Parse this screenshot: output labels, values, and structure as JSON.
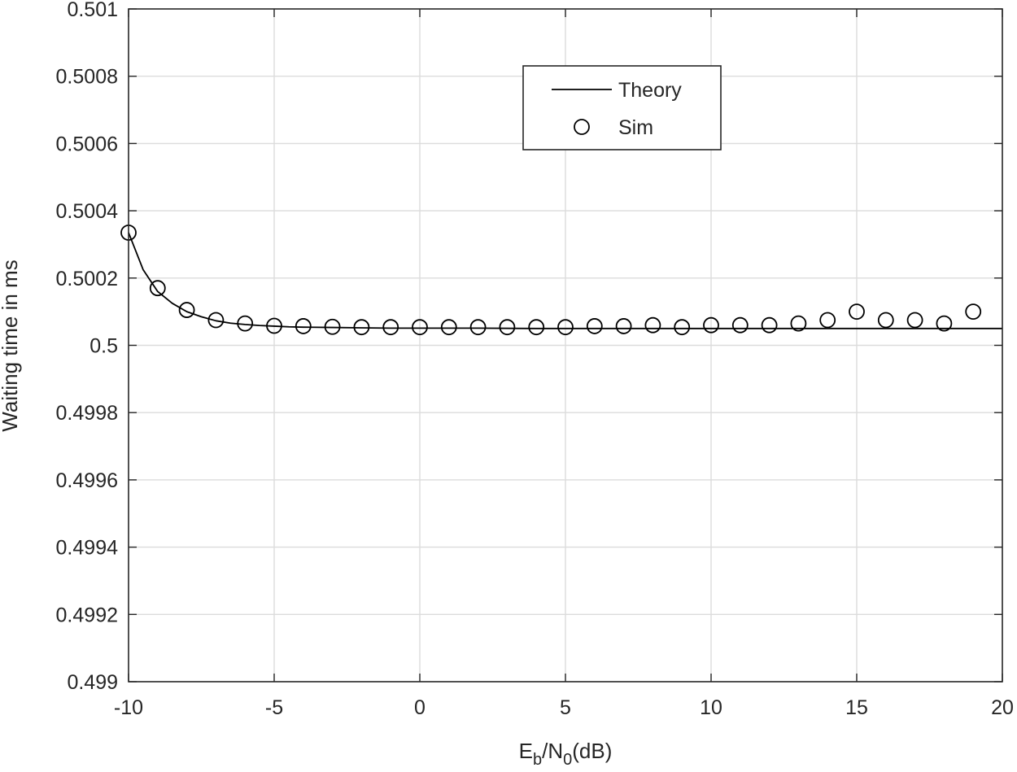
{
  "chart_data": {
    "type": "line",
    "title": "",
    "xlabel": {
      "main": "E",
      "sub1": "b",
      "mid": "/N",
      "sub2": "0",
      "tail": "(dB)"
    },
    "ylabel": "Waiting time in ms",
    "xlim": [
      -10,
      20
    ],
    "ylim": [
      0.499,
      0.501
    ],
    "xticks": [
      -10,
      -5,
      0,
      5,
      10,
      15,
      20
    ],
    "xtick_labels": [
      "-10",
      "-5",
      "0",
      "5",
      "10",
      "15",
      "20"
    ],
    "yticks": [
      0.499,
      0.4992,
      0.4994,
      0.4996,
      0.4998,
      0.5,
      0.5002,
      0.5004,
      0.5006,
      0.5008,
      0.501
    ],
    "ytick_labels": [
      "0.499",
      "0.4992",
      "0.4994",
      "0.4996",
      "0.4998",
      "0.5",
      "0.5002",
      "0.5004",
      "0.5006",
      "0.5008",
      "0.501"
    ],
    "grid": true,
    "legend_position": "top-center",
    "series": [
      {
        "name": "Theory",
        "style": "line",
        "color": "#000000",
        "x": [
          -10,
          -9.5,
          -9,
          -8.5,
          -8,
          -7.5,
          -7,
          -6.5,
          -6,
          -5.5,
          -5,
          -4.5,
          -4,
          -3,
          -2,
          -1,
          0,
          2,
          4,
          6,
          8,
          10,
          12,
          14,
          16,
          18,
          20
        ],
        "y": [
          0.500335,
          0.500225,
          0.50016,
          0.500125,
          0.5001,
          0.500085,
          0.500073,
          0.500066,
          0.500062,
          0.500059,
          0.500057,
          0.500055,
          0.500054,
          0.500053,
          0.500052,
          0.500051,
          0.500051,
          0.500051,
          0.50005,
          0.50005,
          0.50005,
          0.50005,
          0.50005,
          0.50005,
          0.50005,
          0.50005,
          0.50005
        ]
      },
      {
        "name": "Sim",
        "style": "markers",
        "marker": "circle",
        "color": "#000000",
        "x": [
          -10,
          -9,
          -8,
          -7,
          -6,
          -5,
          -4,
          -3,
          -2,
          -1,
          0,
          1,
          2,
          3,
          4,
          5,
          6,
          7,
          8,
          9,
          10,
          11,
          12,
          13,
          14,
          15,
          16,
          17,
          18,
          19
        ],
        "y": [
          0.500335,
          0.50017,
          0.500105,
          0.500075,
          0.500065,
          0.500058,
          0.500057,
          0.500055,
          0.500054,
          0.500054,
          0.500054,
          0.500054,
          0.500054,
          0.500054,
          0.500054,
          0.500054,
          0.500057,
          0.500057,
          0.50006,
          0.500054,
          0.50006,
          0.50006,
          0.50006,
          0.500065,
          0.500075,
          0.5001,
          0.500075,
          0.500075,
          0.500065,
          0.5001
        ]
      }
    ]
  }
}
